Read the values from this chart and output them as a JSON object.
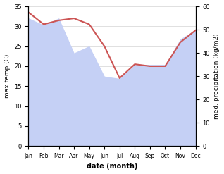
{
  "months": [
    "Jan",
    "Feb",
    "Mar",
    "Apr",
    "May",
    "Jun",
    "Jul",
    "Aug",
    "Sep",
    "Oct",
    "Nov",
    "Dec"
  ],
  "max_temp": [
    33.5,
    30.5,
    31.5,
    32.0,
    30.5,
    25.0,
    17.0,
    20.5,
    20.0,
    20.0,
    26.0,
    29.0
  ],
  "precipitation": [
    55,
    52,
    55,
    40,
    43,
    30,
    29,
    35,
    35,
    35,
    46,
    50
  ],
  "temp_color": "#cc5555",
  "precip_fill_color": "#c5d0f5",
  "ylabel_left": "max temp (C)",
  "ylabel_right": "med. precipitation (kg/m2)",
  "xlabel": "date (month)",
  "ylim_left": [
    0,
    35
  ],
  "ylim_right": [
    0,
    60
  ],
  "yticks_left": [
    0,
    5,
    10,
    15,
    20,
    25,
    30,
    35
  ],
  "yticks_right": [
    0,
    10,
    20,
    30,
    40,
    50,
    60
  ],
  "background_color": "#ffffff"
}
